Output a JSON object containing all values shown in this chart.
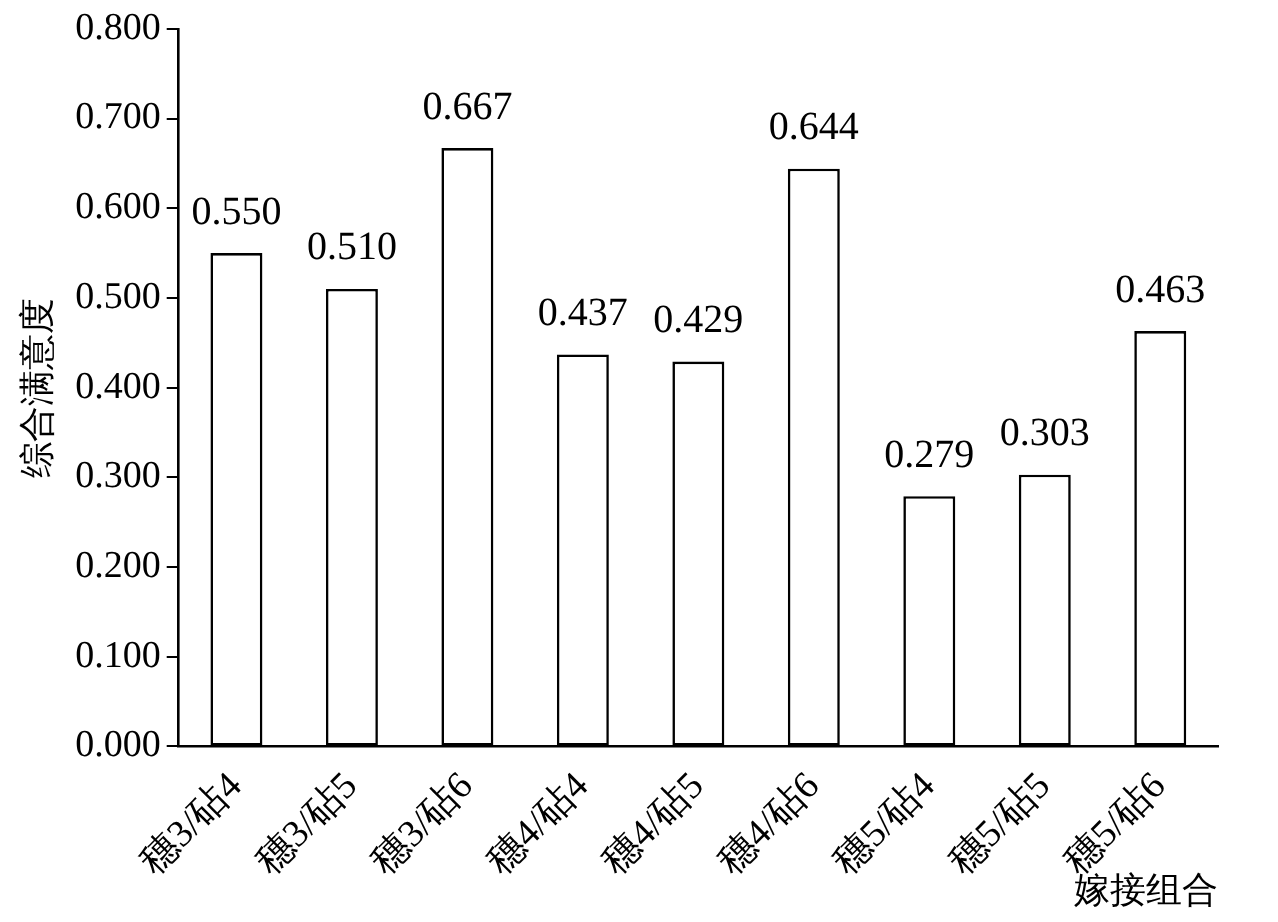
{
  "chart_data": {
    "type": "bar",
    "ylabel": "综合满意度",
    "xlabel": "嫁接组合",
    "categories": [
      "穗3/砧4",
      "穗3/砧5",
      "穗3/砧6",
      "穗4/砧4",
      "穗4/砧5",
      "穗4/砧6",
      "穗5/砧4",
      "穗5/砧5",
      "穗5/砧6"
    ],
    "values": [
      0.55,
      0.51,
      0.667,
      0.437,
      0.429,
      0.644,
      0.279,
      0.303,
      0.463
    ],
    "value_labels": [
      "0.550",
      "0.510",
      "0.667",
      "0.437",
      "0.429",
      "0.644",
      "0.279",
      "0.303",
      "0.463"
    ],
    "color": "#ffffff",
    "ylim": [
      0,
      0.8
    ],
    "yticks": [
      {
        "value": 0,
        "label": "0.000"
      },
      {
        "value": 0.1,
        "label": "0.100"
      },
      {
        "value": 0.2,
        "label": "0.200"
      },
      {
        "value": 0.3,
        "label": "0.300"
      },
      {
        "value": 0.4,
        "label": "0.400"
      },
      {
        "value": 0.5,
        "label": "0.500"
      },
      {
        "value": 0.6,
        "label": "0.600"
      },
      {
        "value": 0.7,
        "label": "0.700"
      },
      {
        "value": 0.8,
        "label": "0.800"
      }
    ],
    "grid": false,
    "legend": false
  }
}
